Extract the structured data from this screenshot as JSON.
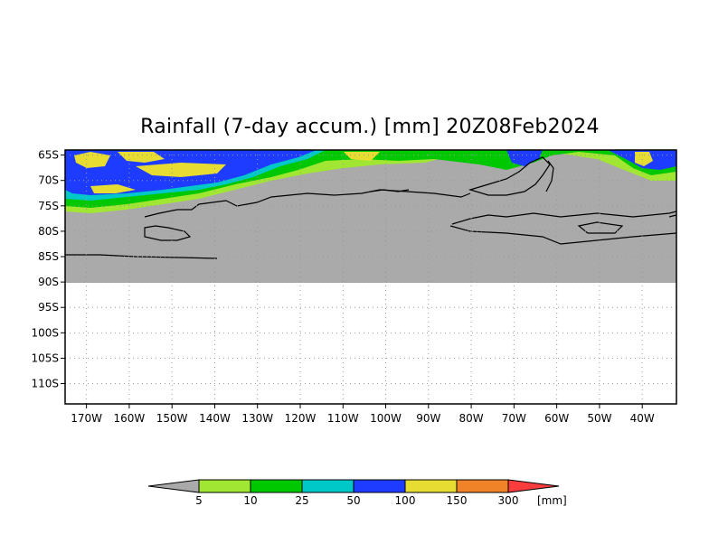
{
  "title": "Rainfall (7-day accum.) [mm] 20Z08Feb2024",
  "map": {
    "lon_range": [
      -175,
      -32
    ],
    "lat_range": [
      -64,
      -114
    ],
    "lat_ticks": [
      "65S",
      "70S",
      "75S",
      "80S",
      "85S",
      "90S",
      "95S",
      "100S",
      "105S",
      "110S"
    ],
    "lon_ticks": [
      "170W",
      "160W",
      "150W",
      "140W",
      "130W",
      "120W",
      "110W",
      "100W",
      "90W",
      "80W",
      "70W",
      "60W",
      "50W",
      "40W"
    ],
    "land_color": "#aaaaaa",
    "grid": true,
    "grid_style": "dotted"
  },
  "colorbar": {
    "levels": [
      "5",
      "10",
      "25",
      "50",
      "100",
      "150",
      "300"
    ],
    "unit": "[mm]",
    "colors": [
      "#aaaaaa",
      "#a0e632",
      "#00c800",
      "#00c8c8",
      "#1e3cff",
      "#e6dc32",
      "#f08228",
      "#fa3c3c"
    ]
  }
}
